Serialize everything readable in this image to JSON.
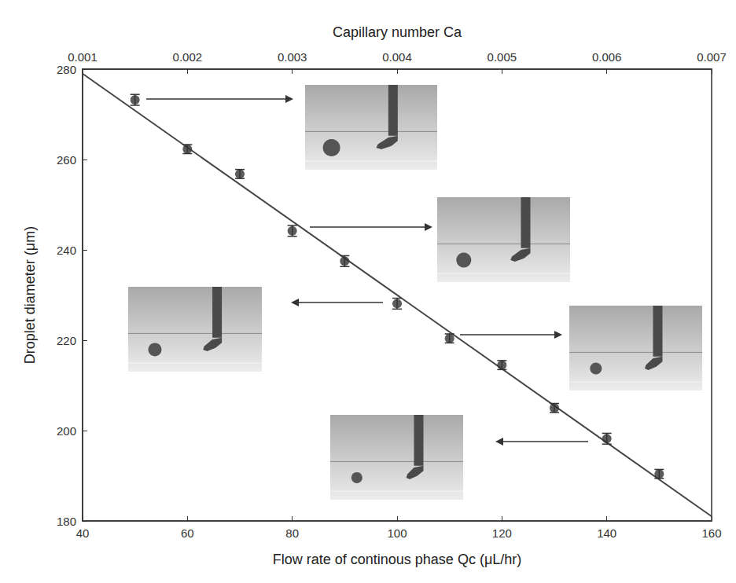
{
  "chart_data": {
    "type": "scatter",
    "x_label": "Flow rate of continous phase Qc (μL/hr)",
    "y_label": "Droplet diameter (μm)",
    "x2_label": "Capillary number Ca",
    "x": [
      50,
      60,
      70,
      80,
      90,
      100,
      110,
      120,
      130,
      140,
      150
    ],
    "values": [
      273.2,
      262.3,
      256.8,
      244.2,
      237.5,
      228.1,
      220.4,
      214.5,
      205.0,
      198.2,
      190.4
    ],
    "errors": [
      1.2,
      1.0,
      1.0,
      1.2,
      1.2,
      1.2,
      1.0,
      1.0,
      1.0,
      1.2,
      1.0
    ],
    "fit": {
      "x": [
        40,
        160
      ],
      "values": [
        279,
        181
      ]
    },
    "color": "#333333",
    "marker": "circle",
    "line_style": "solid",
    "xlim": [
      40,
      160
    ],
    "xticks": [
      40,
      60,
      80,
      100,
      120,
      140,
      160
    ],
    "x2lim": [
      0.001,
      0.007
    ],
    "x2ticks": [
      0.001,
      0.002,
      0.003,
      0.004,
      0.005,
      0.006,
      0.007
    ],
    "ylim": [
      180,
      280
    ],
    "yticks": [
      180,
      200,
      220,
      240,
      260,
      280
    ],
    "grid": false
  }
}
